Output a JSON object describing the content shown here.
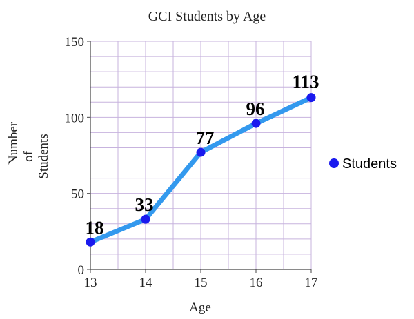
{
  "chart_data": {
    "type": "line",
    "title": "GCI Students by Age",
    "xlabel": "Age",
    "ylabel_lines": [
      "Number",
      "of",
      "Students"
    ],
    "x": [
      13,
      14,
      15,
      16,
      17
    ],
    "series": [
      {
        "name": "Students",
        "values": [
          18,
          33,
          77,
          96,
          113
        ]
      }
    ],
    "xlim": [
      13,
      17
    ],
    "ylim": [
      0,
      150
    ],
    "x_ticks": [
      "13",
      "14",
      "15",
      "16",
      "17"
    ],
    "y_ticks": [
      "0",
      "50",
      "100",
      "150"
    ],
    "data_labels": [
      "18",
      "33",
      "77",
      "96",
      "113"
    ],
    "grid": true,
    "legend_position": "right",
    "colors": {
      "line": "#3399ee",
      "marker": "#1a1aee",
      "grid": "#c7b3de",
      "axis": "#444444"
    }
  }
}
